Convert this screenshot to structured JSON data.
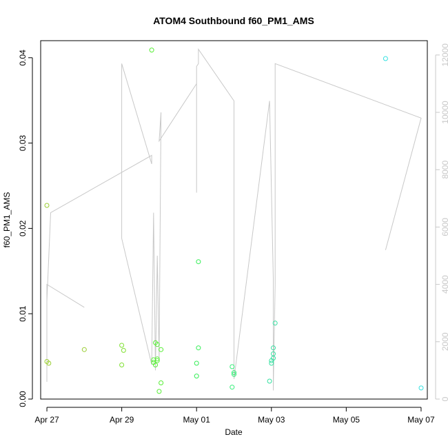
{
  "chart_data": {
    "type": "scatter",
    "title": "ATOM4 Southbound f60_PM1_AMS",
    "xlabel": "Date",
    "ylabel": "f60_PM1_AMS",
    "y2label": "",
    "x_start": "2017-04-27",
    "xlim": [
      "2017-04-26 20:00",
      "2017-05-07 04:00"
    ],
    "ylim": [
      0,
      0.042
    ],
    "y2lim": [
      0,
      12500
    ],
    "x_ticks": [
      {
        "date": "2017-04-27",
        "label": "Apr 27"
      },
      {
        "date": "2017-04-29",
        "label": "Apr 29"
      },
      {
        "date": "2017-05-01",
        "label": "May 01"
      },
      {
        "date": "2017-05-03",
        "label": "May 03"
      },
      {
        "date": "2017-05-05",
        "label": "May 05"
      },
      {
        "date": "2017-05-07",
        "label": "May 07"
      }
    ],
    "y_ticks": [
      {
        "value": 0,
        "label": "0.00"
      },
      {
        "value": 0.01,
        "label": "0.01"
      },
      {
        "value": 0.02,
        "label": "0.02"
      },
      {
        "value": 0.03,
        "label": "0.03"
      },
      {
        "value": 0.04,
        "label": "0.04"
      }
    ],
    "y2_ticks": [
      {
        "value": 0,
        "label": "0"
      },
      {
        "value": 2000,
        "label": "2000"
      },
      {
        "value": 4000,
        "label": "4000"
      },
      {
        "value": 6000,
        "label": "6000"
      },
      {
        "value": 8000,
        "label": "8000"
      },
      {
        "value": 10000,
        "label": "10000"
      },
      {
        "value": 12000,
        "label": "12000"
      }
    ],
    "grid": false,
    "point_series": {
      "values": [
        {
          "x": "2017-04-27 00:00",
          "y": 0.0227,
          "color": "#9acd32"
        },
        {
          "x": "2017-04-27 00:00",
          "y": 0.0044,
          "color": "#9acd32"
        },
        {
          "x": "2017-04-27 01:12",
          "y": 0.0042,
          "color": "#9acd32"
        },
        {
          "x": "2017-04-28 00:00",
          "y": 0.0058,
          "color": "#9acd32"
        },
        {
          "x": "2017-04-29 00:00",
          "y": 0.0063,
          "color": "#7fe030"
        },
        {
          "x": "2017-04-29 00:00",
          "y": 0.004,
          "color": "#7fe030"
        },
        {
          "x": "2017-04-29 01:12",
          "y": 0.0057,
          "color": "#7fe030"
        },
        {
          "x": "2017-04-29 19:12",
          "y": 0.0409,
          "color": "#55ee33"
        },
        {
          "x": "2017-04-29 20:24",
          "y": 0.0046,
          "color": "#55ee33"
        },
        {
          "x": "2017-04-29 20:24",
          "y": 0.0043,
          "color": "#55ee33"
        },
        {
          "x": "2017-04-29 21:36",
          "y": 0.004,
          "color": "#55ee33"
        },
        {
          "x": "2017-04-29 21:36",
          "y": 0.0066,
          "color": "#55ee33"
        },
        {
          "x": "2017-04-29 22:48",
          "y": 0.0064,
          "color": "#55ee33"
        },
        {
          "x": "2017-04-29 22:48",
          "y": 0.0047,
          "color": "#55ee33"
        },
        {
          "x": "2017-04-29 22:48",
          "y": 0.0045,
          "color": "#55ee33"
        },
        {
          "x": "2017-04-30 00:00",
          "y": 0.0009,
          "color": "#55ee33"
        },
        {
          "x": "2017-04-30 01:12",
          "y": 0.0058,
          "color": "#55ee33"
        },
        {
          "x": "2017-04-30 01:12",
          "y": 0.0019,
          "color": "#55ee33"
        },
        {
          "x": "2017-05-01 00:00",
          "y": 0.0042,
          "color": "#33ee55"
        },
        {
          "x": "2017-05-01 00:00",
          "y": 0.0027,
          "color": "#33ee55"
        },
        {
          "x": "2017-05-01 01:12",
          "y": 0.006,
          "color": "#33ee55"
        },
        {
          "x": "2017-05-01 01:12",
          "y": 0.0161,
          "color": "#33ee55"
        },
        {
          "x": "2017-05-01 22:48",
          "y": 0.0038,
          "color": "#33ee77"
        },
        {
          "x": "2017-05-02 00:00",
          "y": 0.0031,
          "color": "#33ee77"
        },
        {
          "x": "2017-05-01 22:48",
          "y": 0.0014,
          "color": "#33ee77"
        },
        {
          "x": "2017-05-02 00:00",
          "y": 0.0029,
          "color": "#33ee77"
        },
        {
          "x": "2017-05-02 22:48",
          "y": 0.0021,
          "color": "#33e0a0"
        },
        {
          "x": "2017-05-03 00:00",
          "y": 0.0045,
          "color": "#33e0a0"
        },
        {
          "x": "2017-05-03 00:00",
          "y": 0.0042,
          "color": "#33e0a0"
        },
        {
          "x": "2017-05-03 01:12",
          "y": 0.0053,
          "color": "#33e0a0"
        },
        {
          "x": "2017-05-03 01:12",
          "y": 0.006,
          "color": "#33e0a0"
        },
        {
          "x": "2017-05-03 01:12",
          "y": 0.0048,
          "color": "#33e0a0"
        },
        {
          "x": "2017-05-03 02:24",
          "y": 0.0089,
          "color": "#33e0a0"
        },
        {
          "x": "2017-05-06 01:12",
          "y": 0.0399,
          "color": "#33e0e0"
        },
        {
          "x": "2017-05-07 00:00",
          "y": 0.0013,
          "color": "#33e0e0"
        }
      ]
    },
    "line_series": {
      "axis": "right",
      "color": "#c8c8c8",
      "values": [
        {
          "x": "2017-04-28 00:00",
          "y": 3200
        },
        {
          "x": "2017-04-27 00:00",
          "y": 4000
        },
        {
          "x": "2017-04-27 00:00",
          "y": 600
        },
        {
          "x": "2017-04-27 00:00",
          "y": 3400
        },
        {
          "x": "2017-04-27 02:24",
          "y": 6500
        },
        {
          "x": "2017-04-29 19:12",
          "y": 8500
        },
        {
          "x": "2017-04-29 19:12",
          "y": 8200
        },
        {
          "x": "2017-04-29 00:00",
          "y": 11700
        },
        {
          "x": "2017-04-29 00:00",
          "y": 5600
        },
        {
          "x": "2017-04-29 19:12",
          "y": 1200
        },
        {
          "x": "2017-04-29 20:24",
          "y": 6500
        },
        {
          "x": "2017-04-29 21:36",
          "y": 1000
        },
        {
          "x": "2017-04-29 22:48",
          "y": 5000
        },
        {
          "x": "2017-04-30 00:00",
          "y": 1400
        },
        {
          "x": "2017-04-30 01:12",
          "y": 10000
        },
        {
          "x": "2017-04-30 00:00",
          "y": 9000
        },
        {
          "x": "2017-05-01 00:00",
          "y": 11000
        },
        {
          "x": "2017-05-01 00:00",
          "y": 7200
        },
        {
          "x": "2017-05-01 00:00",
          "y": 11600
        },
        {
          "x": "2017-05-01 01:12",
          "y": 11700
        },
        {
          "x": "2017-05-01 01:12",
          "y": 12200
        },
        {
          "x": "2017-05-02 00:00",
          "y": 10400
        },
        {
          "x": "2017-05-02 00:00",
          "y": 6200
        },
        {
          "x": "2017-05-02 00:00",
          "y": 700
        },
        {
          "x": "2017-05-02 22:48",
          "y": 10400
        },
        {
          "x": "2017-05-03 01:12",
          "y": 4200
        },
        {
          "x": "2017-05-03 01:12",
          "y": 300
        },
        {
          "x": "2017-05-03 02:24",
          "y": 4000
        },
        {
          "x": "2017-05-03 02:24",
          "y": 11700
        },
        {
          "x": "2017-05-07 00:00",
          "y": 9800
        },
        {
          "x": "2017-05-06 01:12",
          "y": 5200
        }
      ]
    }
  }
}
